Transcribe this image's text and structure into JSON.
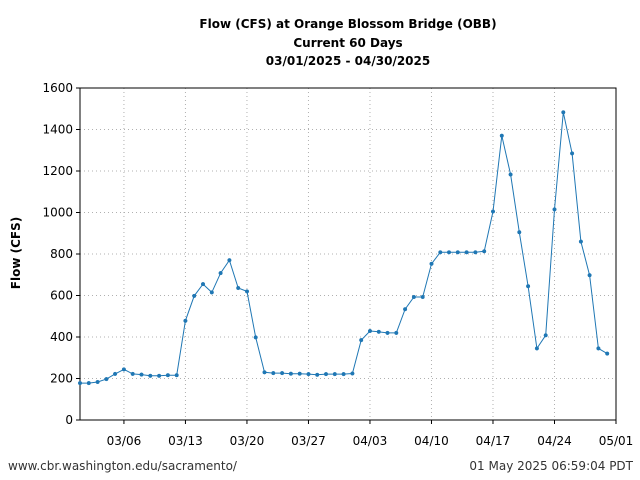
{
  "chart_data": {
    "type": "line",
    "title_lines": [
      "Flow (CFS) at Orange Blossom Bridge (OBB)",
      "Current 60 Days",
      "03/01/2025 - 04/30/2025"
    ],
    "xlabel": "",
    "ylabel": "Flow (CFS)",
    "ylim": [
      0,
      1600
    ],
    "yticks": [
      0,
      200,
      400,
      600,
      800,
      1000,
      1200,
      1400,
      1600
    ],
    "xlim": [
      "2025-03-01",
      "2025-05-01"
    ],
    "xticks": [
      {
        "date": "2025-03-06",
        "label": "03/06"
      },
      {
        "date": "2025-03-13",
        "label": "03/13"
      },
      {
        "date": "2025-03-20",
        "label": "03/20"
      },
      {
        "date": "2025-03-27",
        "label": "03/27"
      },
      {
        "date": "2025-04-03",
        "label": "04/03"
      },
      {
        "date": "2025-04-10",
        "label": "04/10"
      },
      {
        "date": "2025-04-17",
        "label": "04/17"
      },
      {
        "date": "2025-04-24",
        "label": "04/24"
      },
      {
        "date": "2025-05-01",
        "label": "05/01"
      }
    ],
    "grid": true,
    "series_color": "#1f77b4",
    "series": [
      {
        "x": [
          "2025-03-01",
          "2025-03-02",
          "2025-03-03",
          "2025-03-04",
          "2025-03-05",
          "2025-03-06",
          "2025-03-07",
          "2025-03-08",
          "2025-03-09",
          "2025-03-10",
          "2025-03-11",
          "2025-03-12",
          "2025-03-13",
          "2025-03-14",
          "2025-03-15",
          "2025-03-16",
          "2025-03-17",
          "2025-03-18",
          "2025-03-19",
          "2025-03-20",
          "2025-03-21",
          "2025-03-22",
          "2025-03-23",
          "2025-03-24",
          "2025-03-25",
          "2025-03-26",
          "2025-03-27",
          "2025-03-28",
          "2025-03-29",
          "2025-03-30",
          "2025-03-31",
          "2025-04-01",
          "2025-04-02",
          "2025-04-03",
          "2025-04-04",
          "2025-04-05",
          "2025-04-06",
          "2025-04-07",
          "2025-04-08",
          "2025-04-09",
          "2025-04-10",
          "2025-04-11",
          "2025-04-12",
          "2025-04-13",
          "2025-04-14",
          "2025-04-15",
          "2025-04-16",
          "2025-04-17",
          "2025-04-18",
          "2025-04-19",
          "2025-04-20",
          "2025-04-21",
          "2025-04-22",
          "2025-04-23",
          "2025-04-24",
          "2025-04-25",
          "2025-04-26",
          "2025-04-27",
          "2025-04-28",
          "2025-04-29",
          "2025-04-30"
        ],
        "y": [
          178,
          178,
          183,
          197,
          222,
          244,
          222,
          219,
          213,
          213,
          216,
          216,
          478,
          598,
          655,
          615,
          708,
          770,
          636,
          620,
          398,
          230,
          226,
          226,
          223,
          223,
          221,
          218,
          221,
          221,
          221,
          224,
          385,
          429,
          425,
          420,
          420,
          534,
          593,
          593,
          753,
          808,
          808,
          808,
          808,
          808,
          813,
          1005,
          1370,
          1183,
          905,
          645,
          345,
          408,
          1015,
          1483,
          1285,
          860,
          698,
          345,
          320
        ]
      }
    ]
  },
  "footer": {
    "left": "www.cbr.washington.edu/sacramento/",
    "right": "01 May 2025 06:59:04 PDT"
  }
}
